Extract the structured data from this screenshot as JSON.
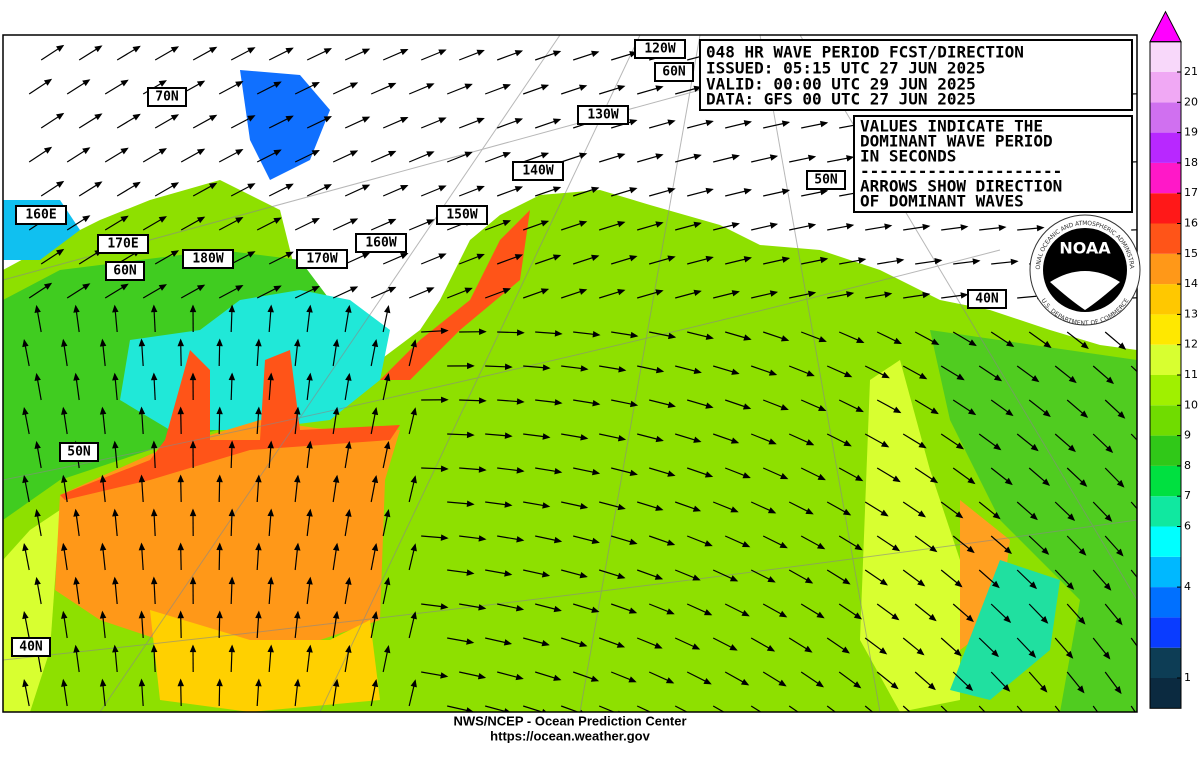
{
  "title_box": {
    "lines": [
      "048 HR WAVE PERIOD FCST/DIRECTION",
      "ISSUED: 05:15 UTC 27 JUN 2025",
      "VALID:  00:00 UTC 29 JUN 2025",
      "DATA:  GFS 00 UTC 27 JUN 2025"
    ]
  },
  "info_box": {
    "lines": [
      "VALUES INDICATE THE",
      "DOMINANT WAVE PERIOD",
      "IN SECONDS",
      "---------------------",
      "ARROWS SHOW DIRECTION",
      "OF DOMINANT WAVES"
    ]
  },
  "map_labels": [
    "120W",
    "60N",
    "70N",
    "130W",
    "140W",
    "50N",
    "150W",
    "160E",
    "170E",
    "60N",
    "180W",
    "170W",
    "160W",
    "40N",
    "50N",
    "40N"
  ],
  "logo": {
    "name": "NOAA",
    "ring_top": "NATIONAL OCEANIC AND ATMOSPHERIC ADMINISTRATION",
    "ring_bottom": "U.S. DEPARTMENT OF COMMERCE"
  },
  "colorbar": {
    "ticks": [
      1,
      4,
      6,
      7,
      8,
      9,
      10,
      11,
      12,
      13,
      14,
      15,
      16,
      17,
      18,
      19,
      20,
      21
    ],
    "colors": [
      "#0b2a40",
      "#0d3d55",
      "#0a3cff",
      "#0070ff",
      "#00b8ff",
      "#00ffff",
      "#10e8a0",
      "#00e040",
      "#30c818",
      "#70dc00",
      "#a0f000",
      "#d8ff30",
      "#ffe800",
      "#ffc800",
      "#ff9818",
      "#ff5418",
      "#ff1818",
      "#ff18c8",
      "#b828ff",
      "#d070f0",
      "#f0a8f4",
      "#f8d8fa"
    ],
    "cap_color": "#ff00ff"
  },
  "footer": {
    "line1": "NWS/NCEP - Ocean Prediction Center",
    "line2": "https://ocean.weather.gov"
  }
}
